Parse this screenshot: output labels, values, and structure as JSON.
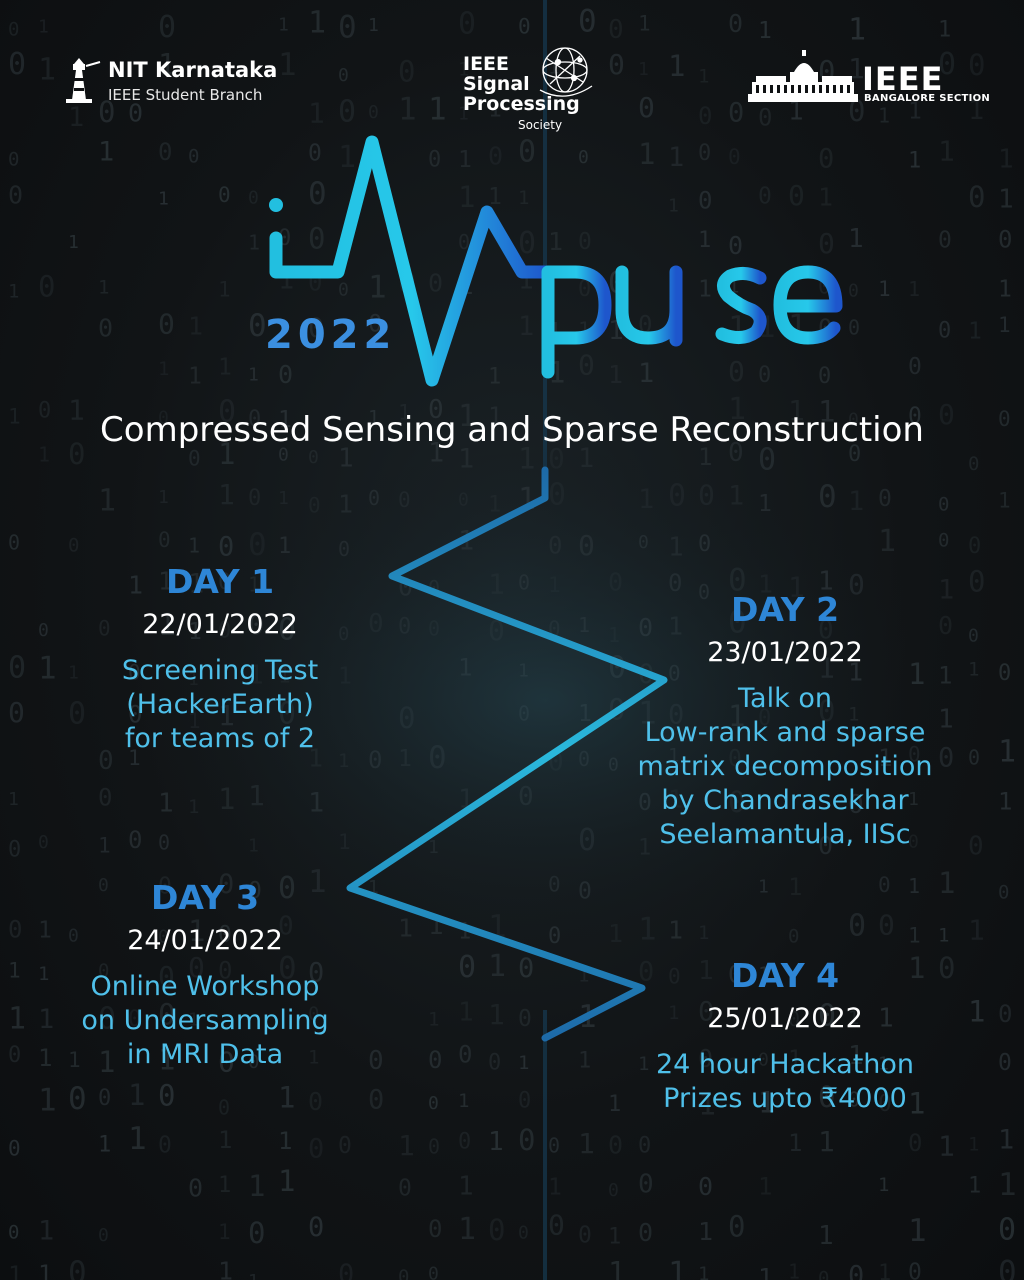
{
  "header": {
    "nitk": {
      "name": "NIT Karnataka",
      "subtitle": "IEEE Student Branch"
    },
    "sps": {
      "line1": "IEEE",
      "line2": "Signal",
      "line3": "Processing",
      "line4": "Society"
    },
    "ieee_bangalore": {
      "word": "IEEE",
      "subtitle": "BANGALORE SECTION"
    }
  },
  "title": {
    "brand": "iMpulse",
    "year": "2022",
    "subtitle": "Compressed Sensing and Sparse Reconstruction"
  },
  "days": [
    {
      "title": "DAY 1",
      "date": "22/01/2022",
      "lines": [
        "Screening Test",
        "(HackerEarth)",
        "for teams of 2"
      ]
    },
    {
      "title": "DAY 2",
      "date": "23/01/2022",
      "lines": [
        "Talk on",
        "Low-rank and sparse",
        "matrix decomposition",
        "by Chandrasekhar",
        "Seelamantula, IISc"
      ]
    },
    {
      "title": "DAY 3",
      "date": "24/01/2022",
      "lines": [
        "Online Workshop",
        "on Undersampling",
        "in MRI Data"
      ]
    },
    {
      "title": "DAY 4",
      "date": "25/01/2022",
      "lines": [
        "24 hour Hackathon",
        "Prizes upto ₹4000"
      ]
    }
  ],
  "colors": {
    "background": "#111416",
    "accent_blue": "#2e86d6",
    "accent_cyan": "#4fc0ea",
    "wave_cyan": "#29c6e6",
    "wave_blue": "#1f5fd0",
    "text": "#ffffff"
  },
  "icons": [
    "lighthouse-icon",
    "globe-network-icon",
    "vidhana-soudha-icon"
  ]
}
